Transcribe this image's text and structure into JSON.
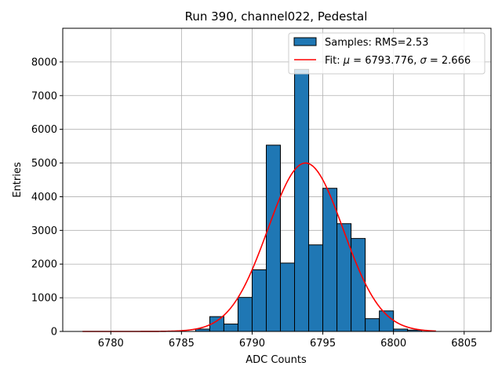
{
  "chart_data": {
    "type": "bar",
    "title": "Run 390, channel022, Pedestal",
    "xlabel": "ADC Counts",
    "ylabel": "Entries",
    "xlim": [
      6776.6,
      6806.9
    ],
    "ylim": [
      0,
      9000
    ],
    "xticks": [
      6780,
      6785,
      6790,
      6795,
      6800,
      6805
    ],
    "yticks": [
      0,
      1000,
      2000,
      3000,
      4000,
      5000,
      6000,
      7000,
      8000
    ],
    "grid": true,
    "legend_position": "top-right",
    "bin_width": 1,
    "histogram": {
      "name": "Samples: RMS=2.53",
      "color": "#1f77b4",
      "edgecolor": "#000000",
      "bins": [
        {
          "left": 6786,
          "count": 70
        },
        {
          "left": 6787,
          "count": 440
        },
        {
          "left": 6788,
          "count": 220
        },
        {
          "left": 6789,
          "count": 1010
        },
        {
          "left": 6790,
          "count": 1830
        },
        {
          "left": 6791,
          "count": 5530
        },
        {
          "left": 6792,
          "count": 2030
        },
        {
          "left": 6793,
          "count": 7780
        },
        {
          "left": 6794,
          "count": 2570
        },
        {
          "left": 6795,
          "count": 4250
        },
        {
          "left": 6796,
          "count": 3200
        },
        {
          "left": 6797,
          "count": 2760
        },
        {
          "left": 6798,
          "count": 380
        },
        {
          "left": 6799,
          "count": 610
        },
        {
          "left": 6800,
          "count": 70
        },
        {
          "left": 6801,
          "count": 40
        }
      ]
    },
    "fit": {
      "name_prefix": "Fit: ",
      "name_symbol_1": "μ",
      "name_middle": " = 6793.776, ",
      "name_symbol_2": "σ",
      "name_suffix": " = 2.666",
      "mu": 6793.776,
      "sigma": 2.666,
      "amplitude": 5000,
      "x_range": [
        6778,
        6803
      ],
      "color": "#ff0000"
    }
  }
}
